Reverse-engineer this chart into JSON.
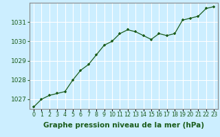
{
  "x": [
    0,
    1,
    2,
    3,
    4,
    5,
    6,
    7,
    8,
    9,
    10,
    11,
    12,
    13,
    14,
    15,
    16,
    17,
    18,
    19,
    20,
    21,
    22,
    23
  ],
  "y": [
    1026.6,
    1027.0,
    1027.2,
    1027.3,
    1027.4,
    1028.0,
    1028.5,
    1028.8,
    1029.3,
    1029.8,
    1030.0,
    1030.4,
    1030.6,
    1030.5,
    1030.3,
    1030.1,
    1030.4,
    1030.3,
    1030.4,
    1031.1,
    1031.2,
    1031.3,
    1031.7,
    1031.8
  ],
  "line_color": "#1a5c1a",
  "marker_color": "#1a5c1a",
  "bg_color": "#cceeff",
  "grid_color": "#ffffff",
  "xlabel": "Graphe pression niveau de la mer (hPa)",
  "xlabel_color": "#1a5c1a",
  "tick_color": "#1a5c1a",
  "ylim": [
    1026.5,
    1032.0
  ],
  "yticks": [
    1027,
    1028,
    1029,
    1030,
    1031
  ],
  "border_color": "#888888",
  "figure_bg": "#cceeff",
  "xlabel_fontsize": 7.5,
  "tick_fontsize": 6.5,
  "xtick_fontsize": 5.8
}
